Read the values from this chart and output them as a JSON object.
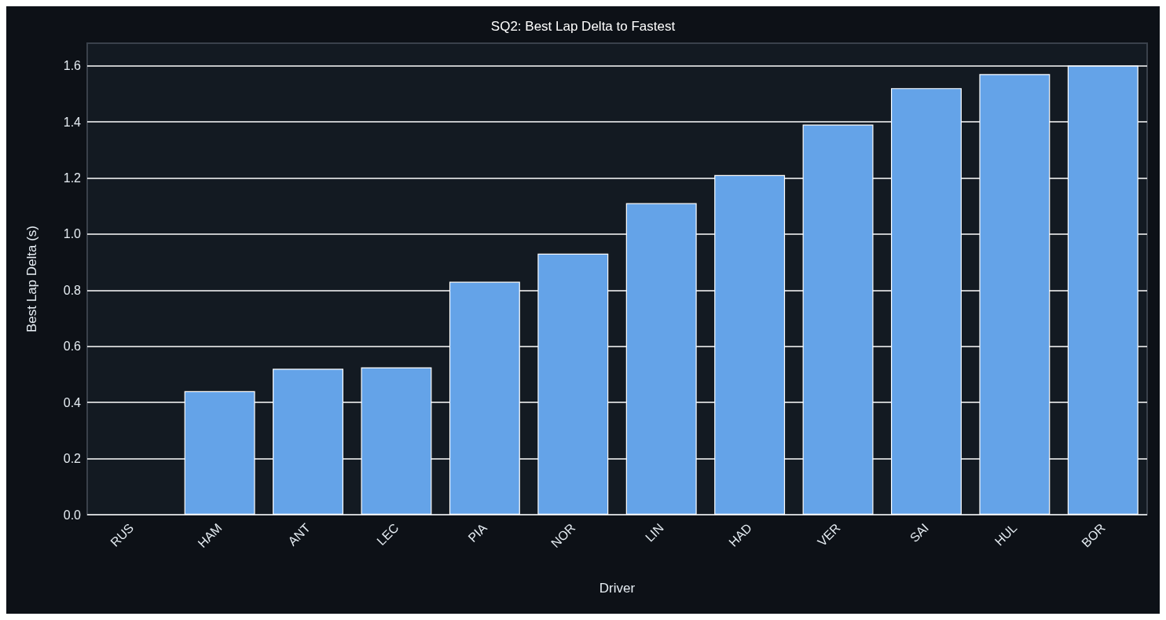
{
  "chart_data": {
    "type": "bar",
    "title": "SQ2: Best Lap Delta to Fastest",
    "xlabel": "Driver",
    "ylabel": "Best Lap Delta (s)",
    "categories": [
      "RUS",
      "HAM",
      "ANT",
      "LEC",
      "PIA",
      "NOR",
      "LIN",
      "HAD",
      "VER",
      "SAI",
      "HUL",
      "BOR"
    ],
    "values": [
      0,
      0.44,
      0.52,
      0.525,
      0.83,
      0.93,
      1.11,
      1.21,
      1.39,
      1.52,
      1.57,
      1.6
    ],
    "color": "#64a3e8",
    "ylim": [
      0,
      1.68
    ],
    "yticks": [
      {
        "value": 0,
        "label": "0.0"
      },
      0.2,
      0.4,
      0.6,
      0.8,
      {
        "value": 1,
        "label": "1.0"
      },
      1.2,
      1.4,
      1.6
    ],
    "grid": "y"
  }
}
